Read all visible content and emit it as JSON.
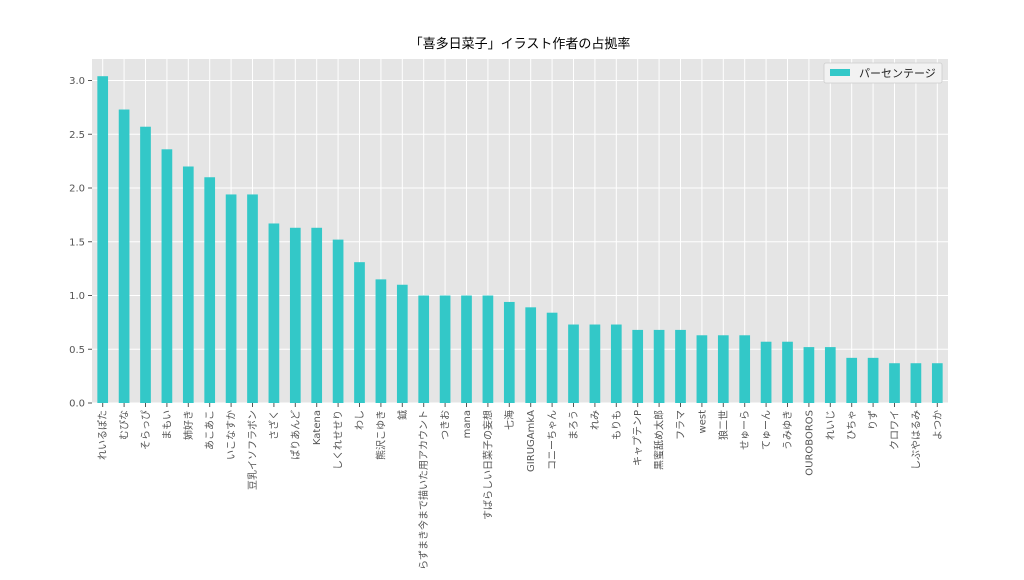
{
  "chart_data": {
    "type": "bar",
    "title": "「喜多日菜子」イラスト作者の占拠率",
    "xlabel": "",
    "ylabel": "",
    "ylim": [
      0,
      3.2
    ],
    "yticks": [
      "0.0",
      "0.5",
      "1.0",
      "1.5",
      "2.0",
      "2.5",
      "3.0"
    ],
    "grid": true,
    "legend_position": "top-right",
    "colors": {
      "bar": "#33c8c8",
      "plot_bg": "#e5e5e5",
      "grid": "#ffffff"
    },
    "categories": [
      "れいるぽた",
      "むぴな",
      "そらっぴ",
      "まもい",
      "姉好き",
      "あこあこ",
      "いこなすか",
      "豆乳イソフラボン",
      "さざく",
      "ぱりあんど",
      "Katena",
      "しくれせせり",
      "わし",
      "熊沢こゆき",
      "鉞",
      "らずまき今まで描いた用アカウント",
      "つきお",
      "mana",
      "すばらしい日菜子の妄想",
      "七海",
      "GIRUGAmkA",
      "コニーちゃん",
      "まろう",
      "れみ",
      "もりも",
      "キャプテンP",
      "黒蜜舐め太郎",
      "フラマ",
      "west",
      "狼二世",
      "せゅーら",
      "てゅーん",
      "うみゆき",
      "OUROBOROS",
      "れいじ",
      "ひちゃ",
      "りず",
      "クロワイ",
      "しぶやはるみ",
      "よつか"
    ],
    "series": [
      {
        "name": "パーセンテージ",
        "values": [
          3.04,
          2.73,
          2.57,
          2.36,
          2.2,
          2.1,
          1.94,
          1.94,
          1.67,
          1.63,
          1.63,
          1.52,
          1.31,
          1.15,
          1.1,
          1.0,
          1.0,
          1.0,
          1.0,
          0.94,
          0.89,
          0.84,
          0.73,
          0.73,
          0.73,
          0.68,
          0.68,
          0.68,
          0.63,
          0.63,
          0.63,
          0.57,
          0.57,
          0.52,
          0.52,
          0.42,
          0.42,
          0.37,
          0.37,
          0.37
        ]
      }
    ]
  }
}
